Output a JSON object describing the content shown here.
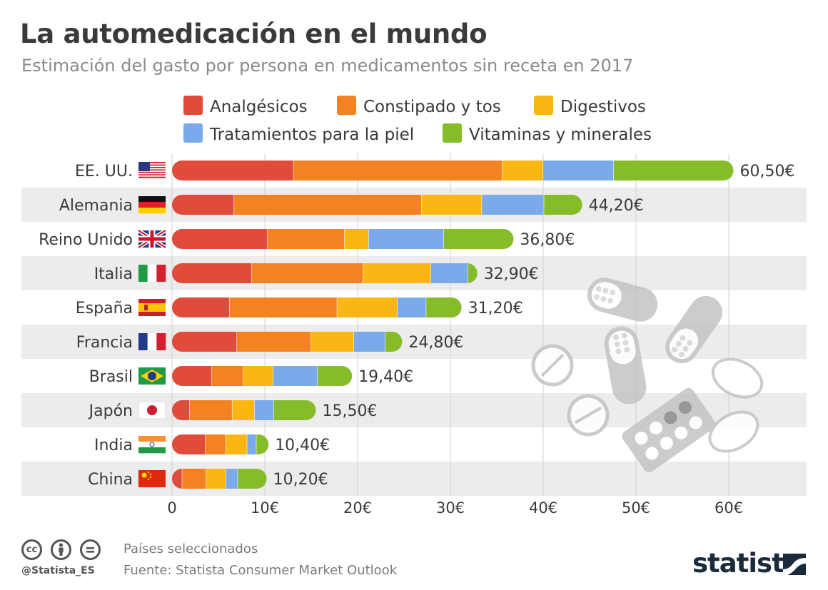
{
  "title": "La automedicación en el mundo",
  "subtitle": "Estimación del gasto por persona en medicamentos sin receta en 2017",
  "footer": {
    "note": "Países seleccionados",
    "source": "Fuente: Statista Consumer Market Outlook",
    "handle": "@Statista_ES",
    "brand": "statista",
    "license_icons": [
      "cc-icon",
      "person-icon",
      "equals-icon"
    ]
  },
  "colors": {
    "Analgésicos": "#e04b3b",
    "Constipado y tos": "#f58220",
    "Digestivos": "#fbb613",
    "Tratamientos para la piel": "#7aaaea",
    "Vitaminas y minerales": "#86bc2a",
    "row_band": "#ececec",
    "decor_grey": "#cfcfcf"
  },
  "chart_data": {
    "type": "bar",
    "orientation": "horizontal",
    "stacked": true,
    "categories": [
      "EE. UU.",
      "Alemania",
      "Reino Unido",
      "Italia",
      "España",
      "Francia",
      "Brasil",
      "Japón",
      "India",
      "China"
    ],
    "flags": [
      "us-flag-icon",
      "germany-flag-icon",
      "uk-flag-icon",
      "italy-flag-icon",
      "spain-flag-icon",
      "france-flag-icon",
      "brazil-flag-icon",
      "japan-flag-icon",
      "india-flag-icon",
      "china-flag-icon"
    ],
    "series": [
      {
        "name": "Analgésicos",
        "values": [
          13.1,
          6.7,
          10.3,
          8.6,
          6.2,
          7.0,
          4.3,
          1.9,
          3.6,
          1.1
        ]
      },
      {
        "name": "Constipado y tos",
        "values": [
          22.5,
          20.2,
          8.3,
          12.0,
          11.6,
          8.0,
          3.4,
          4.6,
          2.2,
          2.6
        ]
      },
      {
        "name": "Digestivos",
        "values": [
          4.4,
          6.5,
          2.6,
          7.3,
          6.5,
          4.6,
          3.2,
          2.4,
          2.3,
          2.1
        ]
      },
      {
        "name": "Tratamientos para la piel",
        "values": [
          7.6,
          6.7,
          8.1,
          4.0,
          3.1,
          3.4,
          4.8,
          2.1,
          1.0,
          1.3
        ]
      },
      {
        "name": "Vitaminas y minerales",
        "values": [
          12.9,
          4.1,
          7.5,
          1.0,
          3.8,
          1.8,
          3.7,
          4.5,
          1.3,
          3.1
        ]
      }
    ],
    "totals": [
      "60,50€",
      "44,20€",
      "36,80€",
      "32,90€",
      "31,20€",
      "24,80€",
      "19,40€",
      "15,50€",
      "10,40€",
      "10,20€"
    ],
    "xlim": [
      0,
      60
    ],
    "xticks": [
      "0",
      "10€",
      "20€",
      "30€",
      "40€",
      "50€",
      "60€"
    ],
    "xlabel": "",
    "ylabel": "",
    "legend_position": "top"
  }
}
